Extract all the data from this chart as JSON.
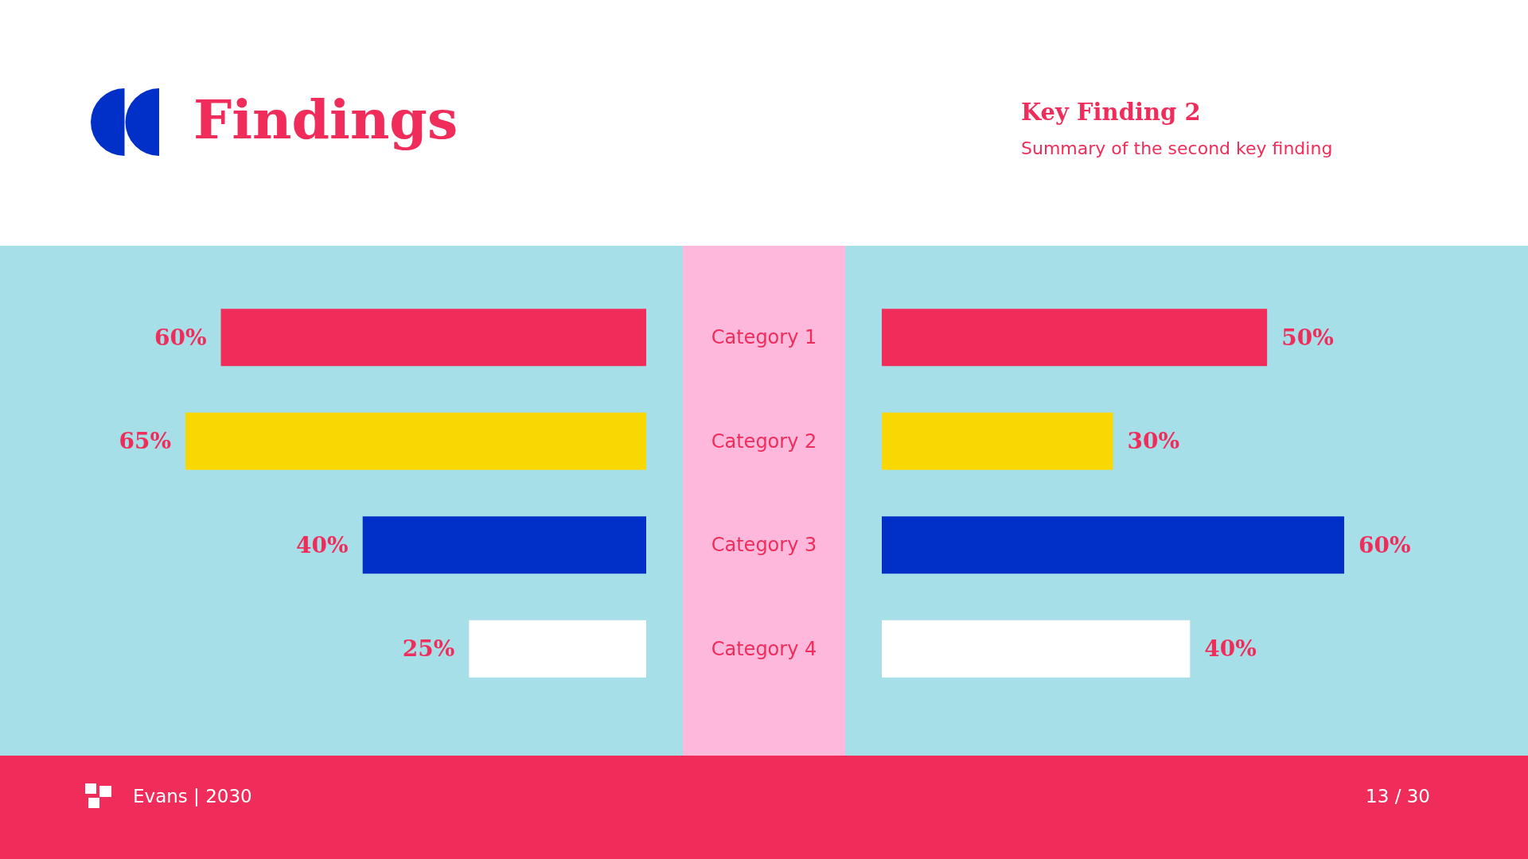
{
  "chart_data": [
    {
      "type": "bar",
      "orientation": "horizontal",
      "title": "Findings",
      "annotations": [
        "Evans | 2030"
      ],
      "categories": [
        "Category 1",
        "Category 2",
        "Category 3",
        "Category 4"
      ],
      "values": [
        60,
        65,
        40,
        25
      ],
      "value_labels": [
        "60%",
        "65%",
        "40%",
        "25%"
      ],
      "colors": [
        "#f02d5a",
        "#f8d800",
        "#0030c8",
        "#ffffff"
      ],
      "tick_labels": "y"
    },
    {
      "type": "bar",
      "orientation": "horizontal",
      "title": "Key Finding 2",
      "subtitle": "Summary of the second key finding",
      "annotations": [
        "13 / 30"
      ],
      "categories": [
        null,
        null,
        null,
        null
      ],
      "values": [
        50,
        30,
        60,
        40
      ],
      "value_labels": [
        "50%",
        "30%",
        "60%",
        "40%"
      ],
      "colors": [
        "#f02d5a",
        "#f8d800",
        "#0030c8",
        "#ffffff"
      ],
      "tick_labels": false
    }
  ]
}
